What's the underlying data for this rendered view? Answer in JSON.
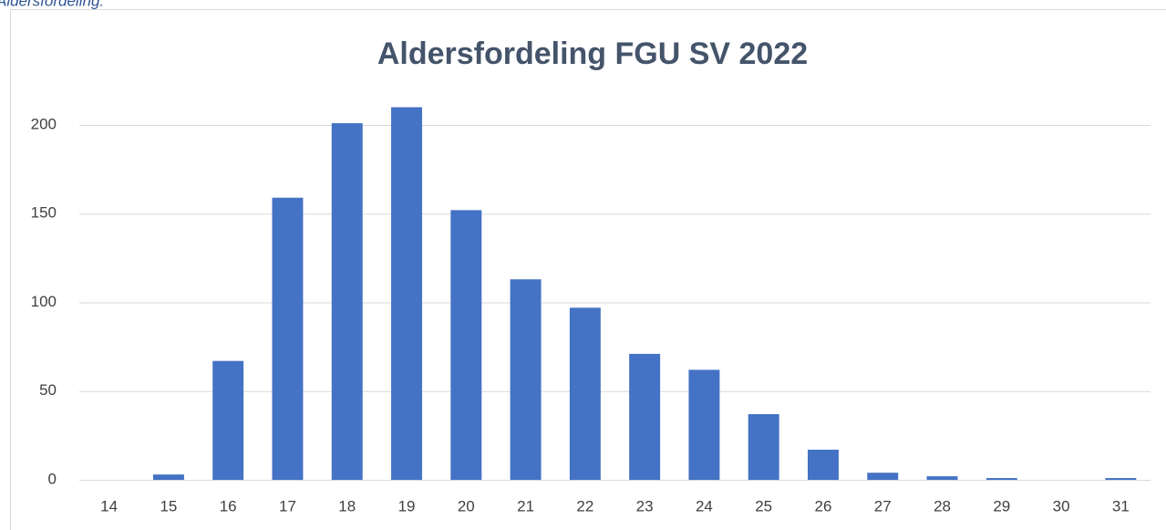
{
  "caption": "Aldersfordeling:",
  "chart_data": {
    "type": "bar",
    "title": "Aldersfordeling FGU SV 2022",
    "categories": [
      "14",
      "15",
      "16",
      "17",
      "18",
      "19",
      "20",
      "21",
      "22",
      "23",
      "24",
      "25",
      "26",
      "27",
      "28",
      "29",
      "30",
      "31"
    ],
    "values": [
      0,
      3,
      67,
      159,
      201,
      210,
      152,
      113,
      97,
      71,
      62,
      37,
      17,
      4,
      2,
      1,
      0,
      1
    ],
    "color": "#4472c4",
    "ylim": [
      0,
      250
    ],
    "yticks": [
      0,
      50,
      100,
      150,
      200
    ],
    "grid": true
  }
}
